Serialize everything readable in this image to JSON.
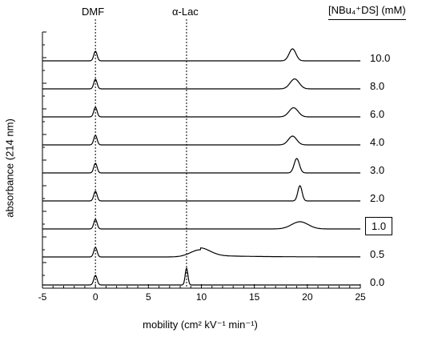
{
  "chart_data": {
    "type": "line",
    "xlabel": "mobility (cm² kV⁻¹ min⁻¹)",
    "ylabel": "absorbance (214 nm)",
    "xlim": [
      -5,
      25
    ],
    "xticks": [
      "-5",
      "0",
      "5",
      "10",
      "15",
      "20",
      "25"
    ],
    "legend_title": "[NBu₄⁺DS] (mM)",
    "markers": [
      {
        "label": "DMF",
        "x": 0
      },
      {
        "label": "α-Lac",
        "x": 8.6
      }
    ],
    "highlighted_series": "1.0",
    "series": [
      {
        "name": "10.0",
        "dmf_peak_x": 0,
        "protein_peak_x": 18.6,
        "protein_peak_height": 0.75,
        "protein_peak_width": 0.45
      },
      {
        "name": "8.0",
        "dmf_peak_x": 0,
        "protein_peak_x": 18.8,
        "protein_peak_height": 0.62,
        "protein_peak_width": 0.6
      },
      {
        "name": "6.0",
        "dmf_peak_x": 0,
        "protein_peak_x": 18.7,
        "protein_peak_height": 0.57,
        "protein_peak_width": 0.6
      },
      {
        "name": "4.0",
        "dmf_peak_x": 0,
        "protein_peak_x": 18.6,
        "protein_peak_height": 0.55,
        "protein_peak_width": 0.55
      },
      {
        "name": "3.0",
        "dmf_peak_x": 0,
        "protein_peak_x": 19.0,
        "protein_peak_height": 0.9,
        "protein_peak_width": 0.35
      },
      {
        "name": "2.0",
        "dmf_peak_x": 0,
        "protein_peak_x": 19.3,
        "protein_peak_height": 0.95,
        "protein_peak_width": 0.28
      },
      {
        "name": "1.0",
        "dmf_peak_x": 0,
        "protein_peak_x": 19.3,
        "protein_peak_height": 0.45,
        "protein_peak_width": 1.1
      },
      {
        "name": "0.5",
        "dmf_peak_x": 0,
        "protein_peak_x": 9.9,
        "protein_peak_height": 0.45,
        "protein_peak_width": 1.3
      },
      {
        "name": "0.0",
        "dmf_peak_x": 0,
        "protein_peak_x": 8.6,
        "protein_peak_height": 1.05,
        "protein_peak_width": 0.18
      }
    ]
  }
}
